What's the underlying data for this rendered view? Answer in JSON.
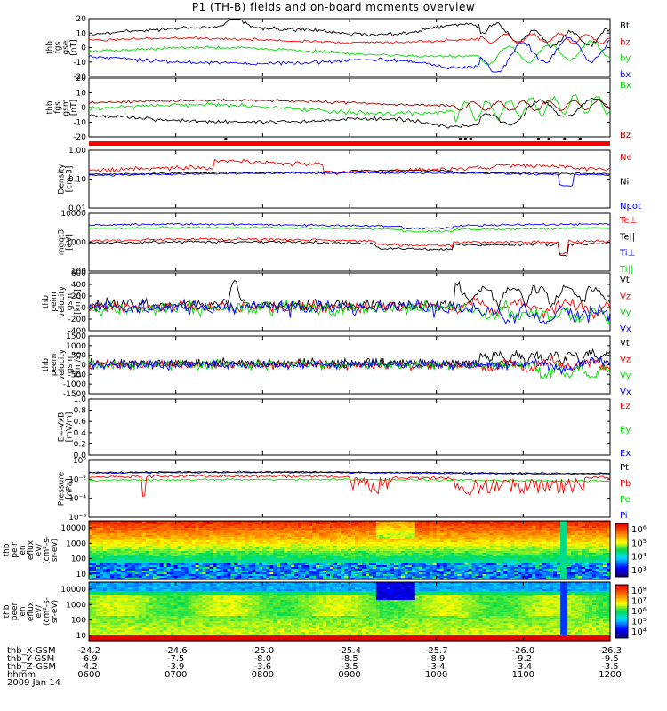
{
  "title": "P1  (TH-B) fields and on-board moments overview",
  "colors": {
    "black": "#000000",
    "red": "#ff0000",
    "green": "#00dd00",
    "blue": "#0000ff",
    "darkred": "#990000"
  },
  "chart_data": [
    {
      "type": "line",
      "panel": "fgs_gse",
      "ylabel": [
        "thb",
        "fgs",
        "gse",
        "[nT]"
      ],
      "ylim": [
        -20,
        20
      ],
      "yticks": [
        "20",
        "10",
        "0",
        "-10",
        "-20"
      ],
      "series": [
        {
          "name": "Bt",
          "color": "black"
        },
        {
          "name": "bz",
          "color": "red"
        },
        {
          "name": "by",
          "color": "green"
        },
        {
          "name": "bx",
          "color": "blue"
        }
      ]
    },
    {
      "type": "line",
      "panel": "fgs_gsm",
      "ylabel": [
        "thb",
        "fgs",
        "gsm",
        "[nT]"
      ],
      "ylim": [
        -20,
        20
      ],
      "yticks": [
        "20",
        "10",
        "0",
        "-10",
        "-20"
      ],
      "series": [
        {
          "name": "Bx",
          "color": "green"
        },
        {
          "name": "Bz",
          "color": "darkred"
        }
      ]
    },
    {
      "type": "line",
      "panel": "density",
      "ylabel": [
        "Density",
        "[cm-3]"
      ],
      "log": true,
      "yticks": [
        "1.00",
        "0.10",
        "0.01"
      ],
      "series": [
        {
          "name": "Ne",
          "color": "red"
        },
        {
          "name": "Ni",
          "color": "black"
        },
        {
          "name": "Npot",
          "color": "blue"
        }
      ]
    },
    {
      "type": "line",
      "panel": "temperature",
      "ylabel": [
        "mgqt3",
        "[eV]"
      ],
      "log": true,
      "yticks": [
        "10000",
        "1000",
        "100"
      ],
      "series": [
        {
          "name": "Te⊥",
          "color": "red"
        },
        {
          "name": "Te||",
          "color": "black"
        },
        {
          "name": "Ti⊥",
          "color": "blue"
        },
        {
          "name": "Ti||",
          "color": "green"
        }
      ]
    },
    {
      "type": "line",
      "panel": "ion_velocity",
      "ylabel": [
        "thb",
        "peim",
        "velocity",
        "gsm",
        "[km/s]"
      ],
      "ylim": [
        -400,
        600
      ],
      "yticks": [
        "600",
        "400",
        "200",
        "0",
        "-200",
        "-400"
      ],
      "series": [
        {
          "name": "Vt",
          "color": "black"
        },
        {
          "name": "Vz",
          "color": "red"
        },
        {
          "name": "Vy",
          "color": "green"
        },
        {
          "name": "Vx",
          "color": "blue"
        }
      ]
    },
    {
      "type": "line",
      "panel": "electron_velocity",
      "ylabel": [
        "thb",
        "peem",
        "velocity",
        "gsm",
        "[km/s]"
      ],
      "ylim": [
        -1500,
        1500
      ],
      "yticks": [
        "1500",
        "1000",
        "500",
        "0",
        "-500",
        "-1000",
        "-1500"
      ],
      "series": [
        {
          "name": "Vt",
          "color": "black"
        },
        {
          "name": "Vz",
          "color": "red"
        },
        {
          "name": "Vy",
          "color": "green"
        },
        {
          "name": "Vx",
          "color": "blue"
        }
      ]
    },
    {
      "type": "line",
      "panel": "efield",
      "ylabel": [
        "E=-VxB",
        "[mV/m]"
      ],
      "ylim": [
        0,
        1
      ],
      "yticks": [
        "1.0",
        "0.8",
        "0.6",
        "0.4",
        "0.2",
        "0.0"
      ],
      "series": [
        {
          "name": "Ez",
          "color": "red"
        },
        {
          "name": "Ey",
          "color": "green"
        },
        {
          "name": "Ex",
          "color": "blue"
        }
      ]
    },
    {
      "type": "line",
      "panel": "pressure",
      "ylabel": [
        "Pressure",
        "[nPa]"
      ],
      "log": true,
      "yticks": [
        "10⁰",
        "10⁻²",
        "10⁻⁴",
        "10⁻⁶"
      ],
      "series": [
        {
          "name": "Pt",
          "color": "black"
        },
        {
          "name": "Pb",
          "color": "red"
        },
        {
          "name": "Pe",
          "color": "green"
        },
        {
          "name": "Pi",
          "color": "blue"
        }
      ]
    },
    {
      "type": "heatmap",
      "panel": "ion_spectrogram",
      "ylabel": [
        "thb",
        "peir",
        "en",
        "eflux",
        "eV/",
        "(cm²-s-",
        "sr-eV)"
      ],
      "yticks": [
        "10000",
        "1000",
        "100",
        "10"
      ],
      "colorbar": [
        "10⁶",
        "10⁵",
        "10⁴",
        "10³"
      ]
    },
    {
      "type": "heatmap",
      "panel": "electron_spectrogram",
      "ylabel": [
        "thb",
        "peer",
        "en",
        "eflux",
        "eV/",
        "(cm²-s-",
        "sr-eV)"
      ],
      "yticks": [
        "10000",
        "1000",
        "100",
        "10"
      ],
      "colorbar": [
        "10⁸",
        "10⁷",
        "10⁶",
        "10⁵",
        "10⁴"
      ]
    }
  ],
  "x_axis": {
    "ticks": [
      "0600",
      "0700",
      "0800",
      "0900",
      "1000",
      "1100",
      "1200"
    ],
    "rows": [
      {
        "label": "thb_X-GSM",
        "values": [
          "-24.2",
          "-24.6",
          "-25.0",
          "-25.4",
          "-25.7",
          "-26.0",
          "-26.3"
        ]
      },
      {
        "label": "thb_Y-GSM",
        "values": [
          "-6.9",
          "-7.5",
          "-8.0",
          "-8.5",
          "-8.9",
          "-9.2",
          "-9.5"
        ]
      },
      {
        "label": "thb_Z-GSM",
        "values": [
          "-4.2",
          "-3.9",
          "-3.6",
          "-3.5",
          "-3.4",
          "-3.4",
          "-3.5"
        ]
      },
      {
        "label": "hhmm",
        "values": [
          "0600",
          "0700",
          "0800",
          "0900",
          "1000",
          "1100",
          "1200"
        ]
      }
    ],
    "date": "2009 Jan 14"
  }
}
